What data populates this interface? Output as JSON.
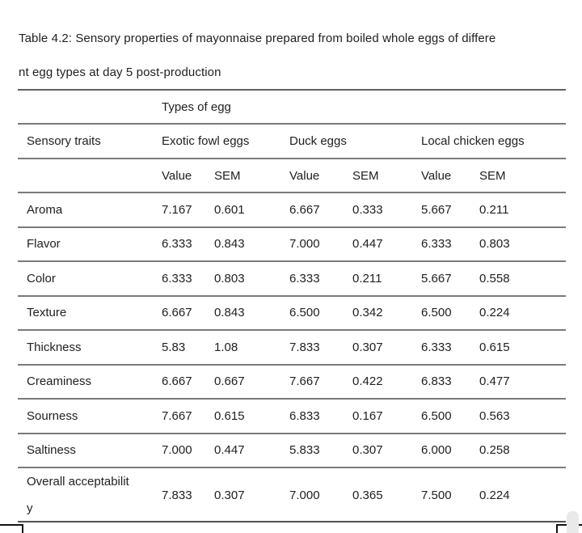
{
  "document": {
    "caption_line1": "Table 4.2: Sensory properties of mayonnaise prepared from boiled whole eggs of differe",
    "caption_line2": "nt egg types at day 5 post-production"
  },
  "table": {
    "span_header": "Types of egg",
    "traits_header": "Sensory traits",
    "group_headers": [
      "Exotic fowl eggs",
      "Duck eggs",
      "Local chicken eggs"
    ],
    "value_label": "Value",
    "sem_label": "SEM",
    "rows": [
      {
        "trait": "Aroma",
        "cells": [
          "7.167",
          "0.601",
          "6.667",
          "0.333",
          "5.667",
          "0.211"
        ]
      },
      {
        "trait": "Flavor",
        "cells": [
          "6.333",
          "0.843",
          "7.000",
          "0.447",
          "6.333",
          "0.803"
        ]
      },
      {
        "trait": "Color",
        "cells": [
          "6.333",
          "0.803",
          "6.333",
          "0.211",
          "5.667",
          "0.558"
        ]
      },
      {
        "trait": "Texture",
        "cells": [
          "6.667",
          "0.843",
          "6.500",
          "0.342",
          "6.500",
          "0.224"
        ]
      },
      {
        "trait": "Thickness",
        "cells": [
          "5.83",
          "1.08",
          "7.833",
          "0.307",
          "6.333",
          "0.615"
        ]
      },
      {
        "trait": "Creaminess",
        "cells": [
          "6.667",
          "0.667",
          "7.667",
          "0.422",
          "6.833",
          "0.477"
        ]
      },
      {
        "trait": "Sourness",
        "cells": [
          "7.667",
          "0.615",
          "6.833",
          "0.167",
          "6.500",
          "0.563"
        ]
      },
      {
        "trait": "Saltiness",
        "cells": [
          "7.000",
          "0.447",
          "5.833",
          "0.307",
          "6.000",
          "0.258"
        ]
      },
      {
        "trait": "Overall acceptabilit\ny",
        "cells": [
          "7.833",
          "0.307",
          "7.000",
          "0.365",
          "7.500",
          "0.224"
        ]
      }
    ]
  },
  "colors": {
    "text": "#212121",
    "row_line": "#7b7b7b",
    "table_top_line": "#616161",
    "table_bottom_line": "#525252",
    "scroll_thumb": "#e9e9e9",
    "partial_element_border": "#141414"
  }
}
